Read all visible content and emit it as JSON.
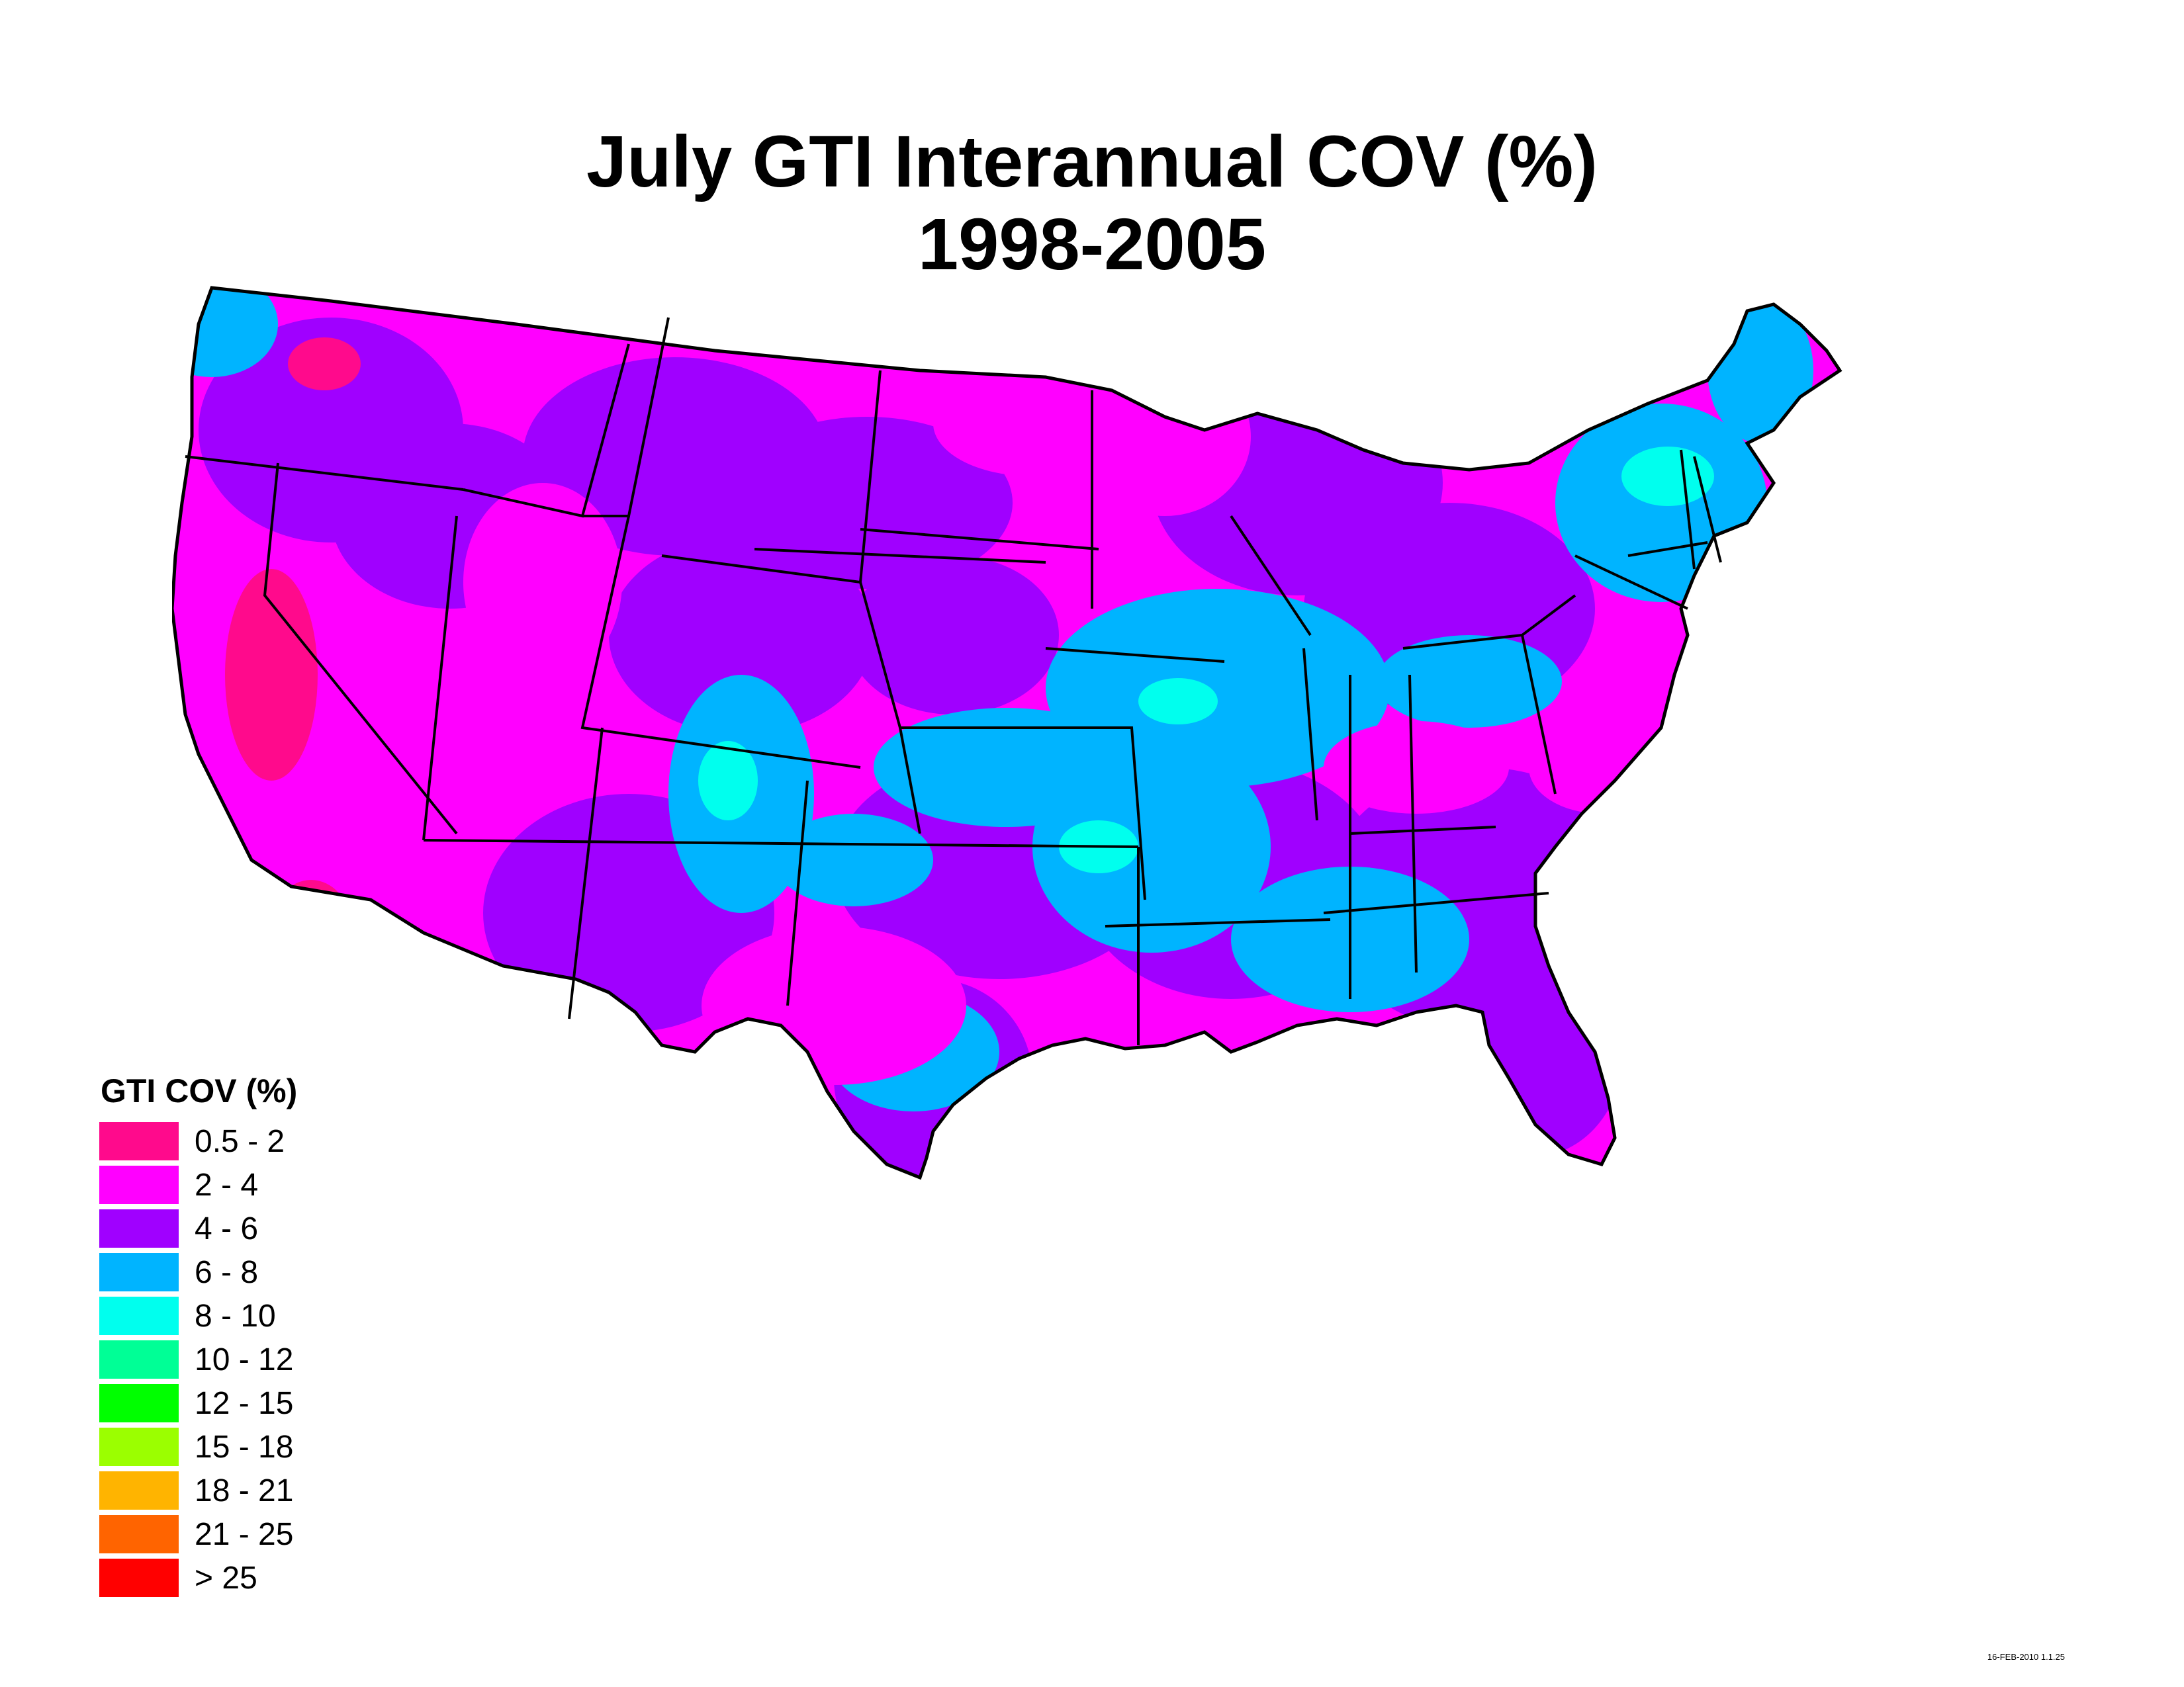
{
  "title": {
    "line1": "July GTI Interannual COV (%)",
    "line2": "1998-2005"
  },
  "legend": {
    "title": "GTI COV (%)",
    "items": [
      {
        "label": "0.5 - 2",
        "color": "#ff0a8c"
      },
      {
        "label": "2 - 4",
        "color": "#ff00ff"
      },
      {
        "label": "4 - 6",
        "color": "#a000ff"
      },
      {
        "label": "6 - 8",
        "color": "#00b4ff"
      },
      {
        "label": "8 - 10",
        "color": "#00ffee"
      },
      {
        "label": "10 - 12",
        "color": "#00ff96"
      },
      {
        "label": "12 - 15",
        "color": "#00ff00"
      },
      {
        "label": "15 - 18",
        "color": "#9bff00"
      },
      {
        "label": "18 - 21",
        "color": "#ffb400"
      },
      {
        "label": "21 - 25",
        "color": "#ff6400"
      },
      {
        "label": "> 25",
        "color": "#ff0000"
      }
    ]
  },
  "map": {
    "region": "Contiguous United States",
    "dominant_classes": [
      "2 - 4",
      "4 - 6",
      "6 - 8"
    ]
  },
  "timestamp": "16-FEB-2010 1.1.25"
}
